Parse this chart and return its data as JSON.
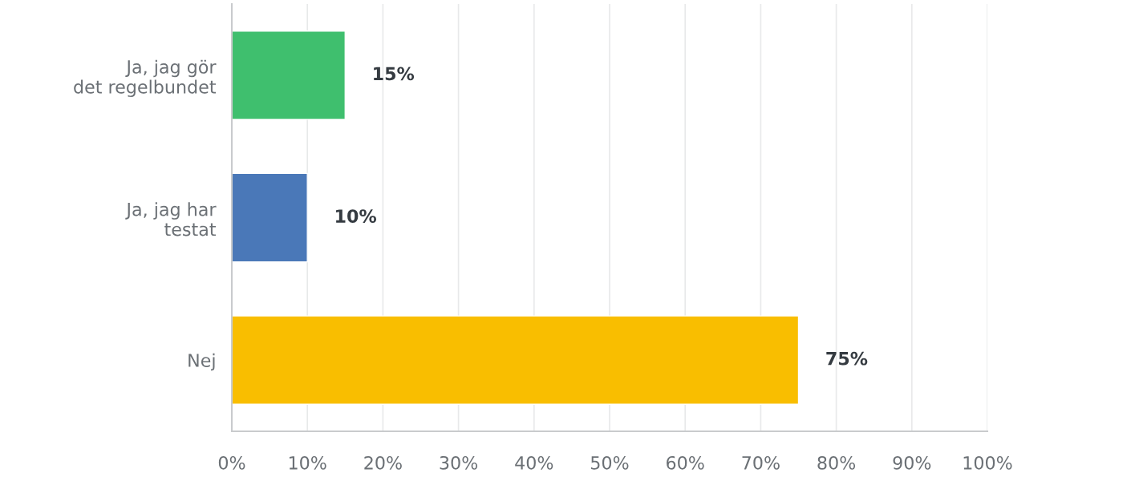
{
  "chart_data": {
    "type": "bar",
    "orientation": "horizontal",
    "categories": [
      "Ja, jag gör\ndet regelbundet",
      "Ja, jag har\ntestat",
      "Nej"
    ],
    "values": [
      15,
      10,
      75
    ],
    "colors": [
      "#3fbf6e",
      "#4a78b8",
      "#f9be00"
    ],
    "value_labels": [
      "15%",
      "10%",
      "75%"
    ],
    "xlim": [
      0,
      100
    ],
    "xticks": [
      {
        "value": 0,
        "label": "0%"
      },
      {
        "value": 10,
        "label": "10%"
      },
      {
        "value": 20,
        "label": "20%"
      },
      {
        "value": 30,
        "label": "30%"
      },
      {
        "value": 40,
        "label": "40%"
      },
      {
        "value": 50,
        "label": "50%"
      },
      {
        "value": 60,
        "label": "60%"
      },
      {
        "value": 70,
        "label": "70%"
      },
      {
        "value": 80,
        "label": "80%"
      },
      {
        "value": 90,
        "label": "90%"
      },
      {
        "value": 100,
        "label": "100%"
      }
    ],
    "grid": "x"
  }
}
